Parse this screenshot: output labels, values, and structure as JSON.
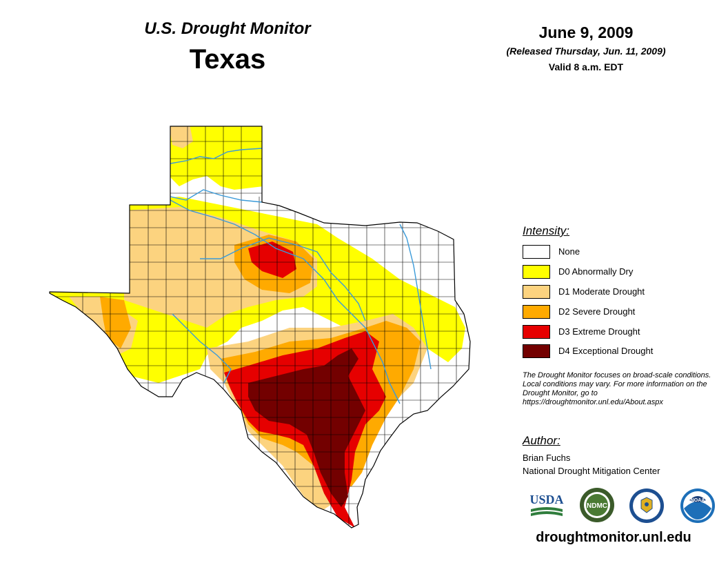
{
  "header": {
    "title": "U.S. Drought Monitor",
    "state": "Texas",
    "date": "June 9, 2009",
    "released": "(Released Thursday, Jun. 11, 2009)",
    "valid": "Valid 8 a.m. EDT"
  },
  "legend": {
    "heading": "Intensity:",
    "items": [
      {
        "label": "None",
        "color": "#ffffff"
      },
      {
        "label": "D0 Abnormally Dry",
        "color": "#ffff00"
      },
      {
        "label": "D1 Moderate Drought",
        "color": "#fcd37f"
      },
      {
        "label": "D2 Severe Drought",
        "color": "#ffaa00"
      },
      {
        "label": "D3 Extreme Drought",
        "color": "#e60000"
      },
      {
        "label": "D4 Exceptional Drought",
        "color": "#730000"
      }
    ]
  },
  "note": "The Drought Monitor focuses on broad-scale conditions. Local conditions may vary. For more information on the Drought Monitor, go to https://droughtmonitor.unl.edu/About.aspx",
  "author": {
    "heading": "Author:",
    "name": "Brian Fuchs",
    "organization": "National Drought Mitigation Center"
  },
  "logos": [
    {
      "name": "usda-logo",
      "text": "USDA"
    },
    {
      "name": "ndmc-logo",
      "text": "NDMC"
    },
    {
      "name": "commerce-seal",
      "text": ""
    },
    {
      "name": "noaa-logo",
      "text": "NOAA"
    }
  ],
  "website": "droughtmonitor.unl.edu",
  "colors": {
    "none": "#ffffff",
    "d0": "#ffff00",
    "d1": "#fcd37f",
    "d2": "#ffaa00",
    "d3": "#e60000",
    "d4": "#730000",
    "river": "#3a9ad9",
    "border": "#000000"
  }
}
